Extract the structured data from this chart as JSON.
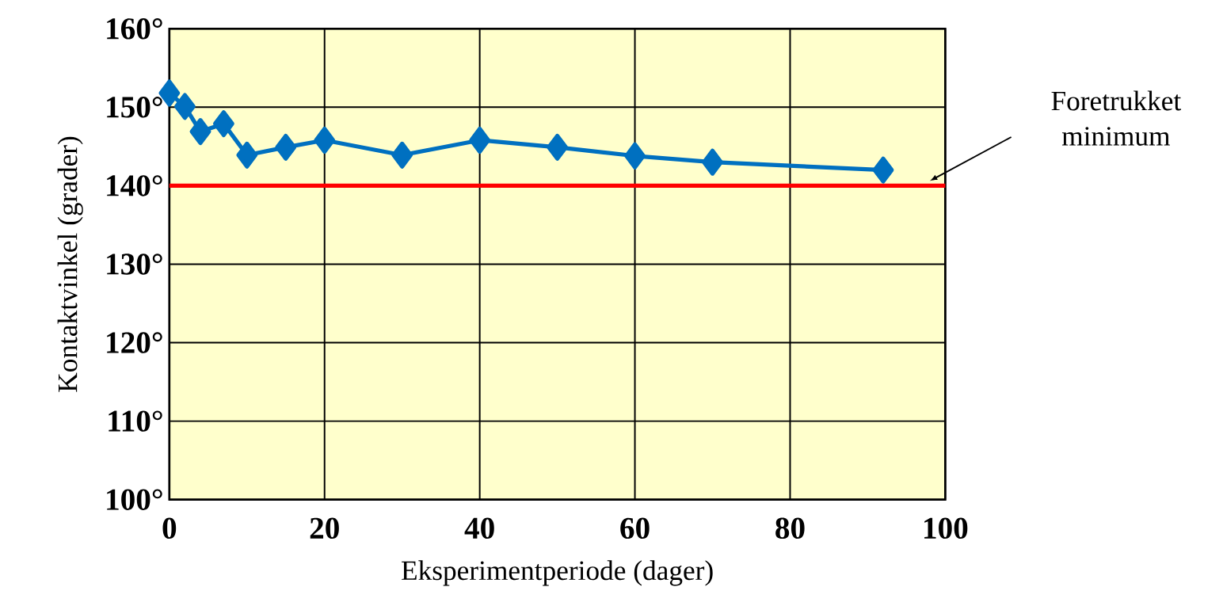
{
  "chart_data": {
    "type": "line",
    "xlabel": "Eksperimentperiode (dager)",
    "ylabel": "Kontaktvinkel (grader)",
    "x": [
      0,
      2,
      4,
      7,
      10,
      15,
      20,
      30,
      40,
      50,
      60,
      70,
      92
    ],
    "series": [
      {
        "color": "#0070c0",
        "values": [
          151.8,
          150.1,
          146.9,
          147.9,
          143.9,
          144.9,
          145.8,
          143.9,
          145.8,
          144.9,
          143.8,
          143.0,
          142.0
        ]
      }
    ],
    "xlim": [
      0,
      100
    ],
    "xticks": [
      0,
      20,
      40,
      60,
      80,
      100
    ],
    "ylim": [
      100,
      160
    ],
    "yticks": [
      {
        "value": 100,
        "label": "100°"
      },
      {
        "value": 110,
        "label": "110°"
      },
      {
        "value": 120,
        "label": "120°"
      },
      {
        "value": 130,
        "label": "130°"
      },
      {
        "value": 140,
        "label": "140°"
      },
      {
        "value": 150,
        "label": "150°"
      },
      {
        "value": 160,
        "label": "160°"
      }
    ],
    "ref_lines": [
      {
        "axis": "y",
        "value": 140,
        "color": "#ff0000"
      }
    ],
    "annotations": [
      "Foretrukket minimum"
    ],
    "grid": true,
    "marker": "diamond",
    "line_style": "solid"
  }
}
